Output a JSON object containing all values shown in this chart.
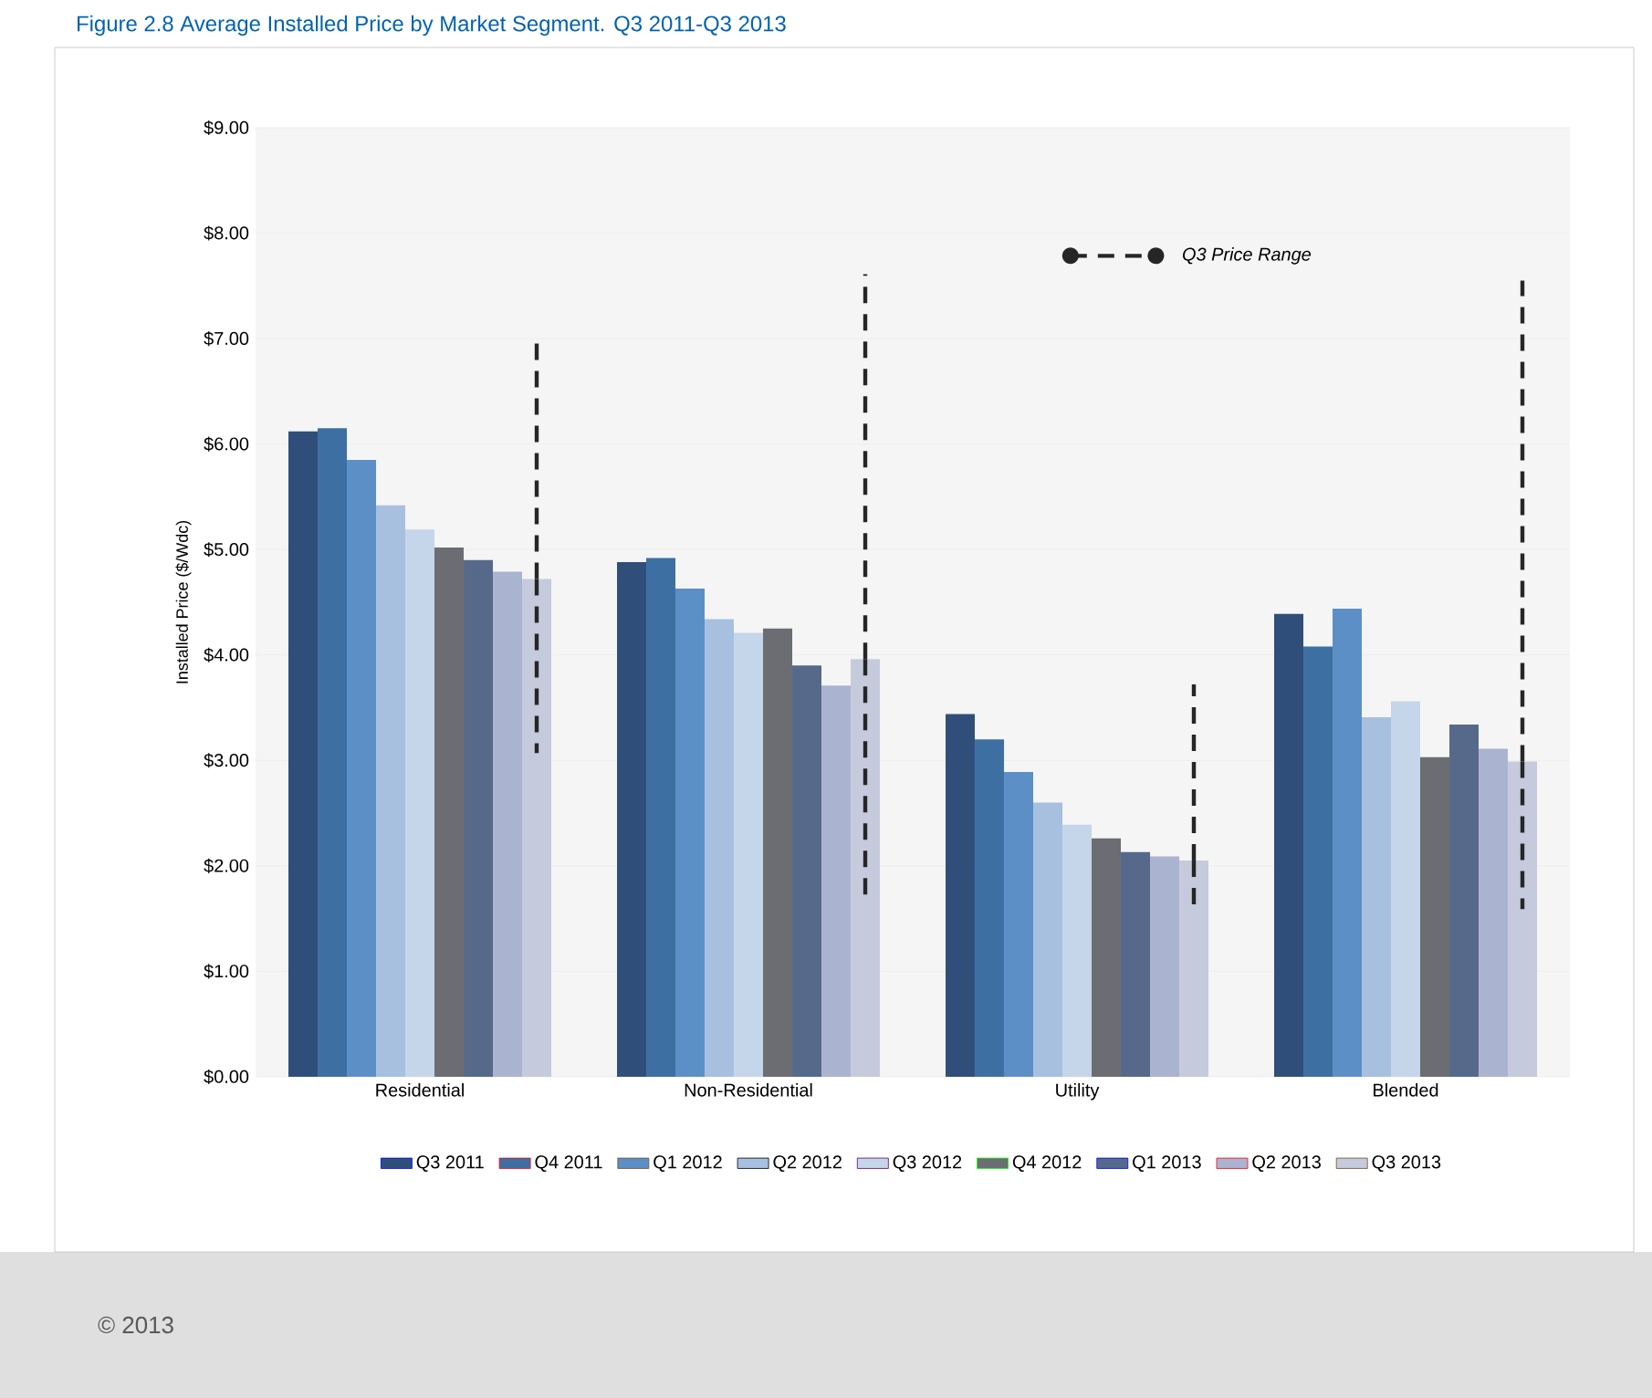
{
  "chart_data": {
    "type": "bar",
    "title": "Figure 2.8  Average Installed Price by Market Segment. Q3 2011-Q3 2013",
    "ylabel": "Installed Price ($/Wdc)",
    "categories": [
      "Residential",
      "Non-Residential",
      "Utility",
      "Blended"
    ],
    "series": [
      {
        "name": "Q3 2011",
        "color": "#2f4f7a",
        "values": [
          6.12,
          4.88,
          3.44,
          4.39
        ]
      },
      {
        "name": "Q4 2011",
        "color": "#3d6fa3",
        "values": [
          6.15,
          4.92,
          3.2,
          4.08
        ]
      },
      {
        "name": "Q1 2012",
        "color": "#5b8fc6",
        "values": [
          5.85,
          4.63,
          2.89,
          4.44
        ]
      },
      {
        "name": "Q2 2012",
        "color": "#a7c0df",
        "values": [
          5.42,
          4.34,
          2.6,
          3.41
        ]
      },
      {
        "name": "Q3 2012",
        "color": "#c5d6ea",
        "values": [
          5.19,
          4.21,
          2.39,
          3.56
        ]
      },
      {
        "name": "Q4 2012",
        "color": "#6b6d72",
        "values": [
          5.02,
          4.25,
          2.26,
          3.03
        ]
      },
      {
        "name": "Q1 2013",
        "color": "#56698a",
        "values": [
          4.9,
          3.9,
          2.13,
          3.34
        ]
      },
      {
        "name": "Q2 2013",
        "color": "#aab4d0",
        "values": [
          4.79,
          3.71,
          2.09,
          3.11
        ]
      },
      {
        "name": "Q3 2013",
        "color": "#c5cbdc",
        "values": [
          4.72,
          3.96,
          2.05,
          2.99
        ],
        "errors": [
          [
            3.07,
            7.0
          ],
          [
            1.72,
            7.61
          ],
          [
            1.6,
            3.72
          ],
          [
            1.59,
            7.55
          ]
        ]
      }
    ],
    "ylim": [
      0,
      9
    ],
    "yticks": [
      {
        "value": 0,
        "label": "$0.00"
      },
      {
        "value": 1,
        "label": "$1.00"
      },
      {
        "value": 2,
        "label": "$2.00"
      },
      {
        "value": 3,
        "label": "$3.00"
      },
      {
        "value": 4,
        "label": "$4.00"
      },
      {
        "value": 5,
        "label": "$5.00"
      },
      {
        "value": 6,
        "label": "$6.00"
      },
      {
        "value": 7,
        "label": "$7.00"
      },
      {
        "value": 8,
        "label": "$8.00"
      },
      {
        "value": 9,
        "label": "$9.00"
      }
    ],
    "grid": "y",
    "legend": "bottom",
    "annotations": [
      "Q3 Price Range",
      "© 2013"
    ]
  }
}
